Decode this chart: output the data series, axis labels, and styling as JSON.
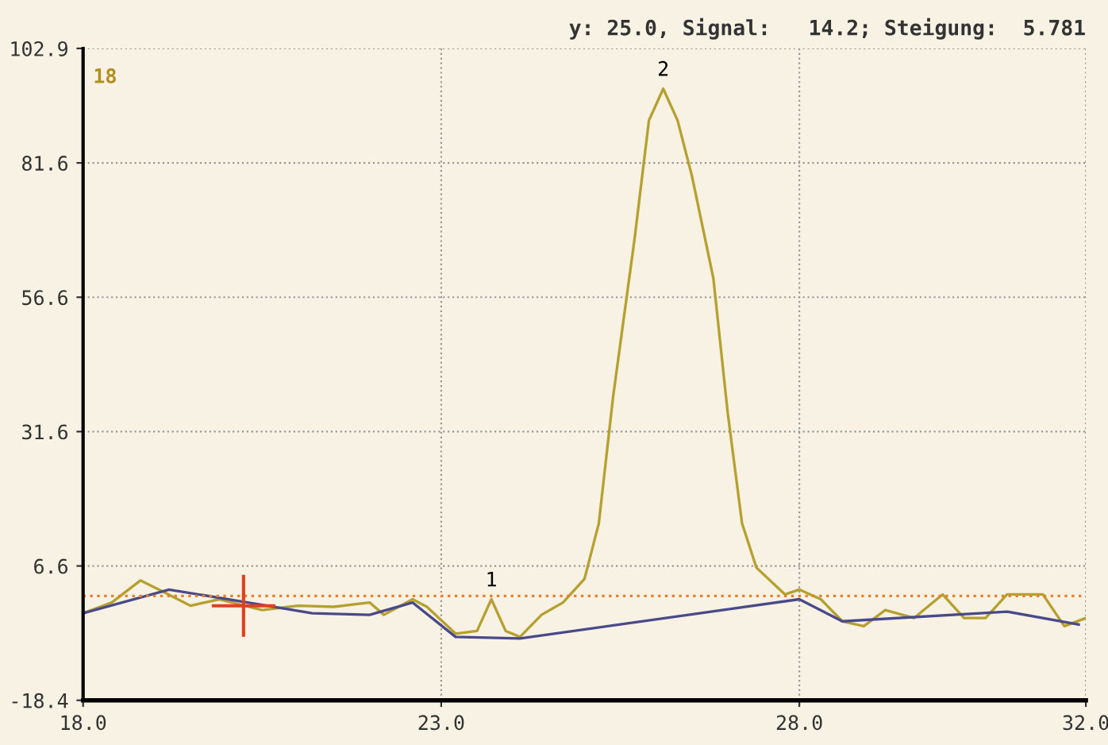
{
  "chart_data": {
    "type": "line",
    "title": "y: 25.0, Signal:   14.2; Steigung:  5.781",
    "annotations": [
      "18",
      {
        "text": "1",
        "x": 23.7,
        "y": 0.4
      },
      {
        "text": "2",
        "x": 26.1,
        "y": 95.4
      }
    ],
    "series": [
      {
        "color": "#b5a030",
        "x": [
          18.0,
          18.4,
          18.8,
          19.1,
          19.5,
          19.9,
          20.5,
          21.0,
          21.5,
          22.0,
          22.2,
          22.6,
          22.8,
          23.2,
          23.5,
          23.7,
          23.9,
          24.1,
          24.4,
          24.7,
          25.0,
          25.2,
          25.4,
          25.7,
          25.9,
          26.1,
          26.3,
          26.5,
          26.8,
          27.0,
          27.2,
          27.4,
          27.8,
          28.0,
          28.3,
          28.6,
          28.9,
          29.2,
          29.6,
          30.0,
          30.3,
          30.6,
          30.9,
          31.4,
          31.7,
          32.0
        ],
        "values": [
          -2.2,
          -0.2,
          3.9,
          1.9,
          -0.8,
          0.4,
          -1.6,
          -0.8,
          -1.0,
          -0.2,
          -2.5,
          0.4,
          -1.0,
          -6.0,
          -5.5,
          0.4,
          -5.5,
          -6.6,
          -2.5,
          -0.2,
          4.2,
          14.5,
          38.1,
          67.5,
          89.5,
          95.4,
          89.5,
          79.2,
          60.1,
          35.1,
          14.5,
          6.3,
          1.3,
          2.2,
          0.4,
          -3.7,
          -4.6,
          -1.6,
          -3.1,
          1.3,
          -3.1,
          -3.1,
          1.3,
          1.3,
          -4.6,
          -3.1
        ]
      },
      {
        "color": "#4a4a8a",
        "x": [
          18.0,
          19.2,
          20.3,
          21.2,
          22.0,
          22.6,
          23.2,
          24.1,
          28.0,
          28.6,
          30.9,
          31.9
        ],
        "values": [
          -2.2,
          2.2,
          -0.2,
          -2.2,
          -2.5,
          -0.2,
          -6.6,
          -6.9,
          0.4,
          -3.7,
          -1.9,
          -4.3
        ]
      }
    ],
    "ref_lines": [
      {
        "axis": "y",
        "value": 1,
        "color": "#e8802a",
        "line_style": "dotted"
      }
    ],
    "xlim": [
      18,
      32
    ],
    "xticks": [
      {
        "value": 18,
        "label": "18.0"
      },
      {
        "value": 23,
        "label": "23.0"
      },
      {
        "value": 28,
        "label": "28.0"
      },
      {
        "value": 32,
        "label": "32.0"
      }
    ],
    "ylim": [
      -18.4,
      102.9
    ],
    "yticks": [
      -18.4,
      6.6,
      31.6,
      56.6,
      81.6,
      102.9
    ],
    "grid": true,
    "legend": false
  }
}
